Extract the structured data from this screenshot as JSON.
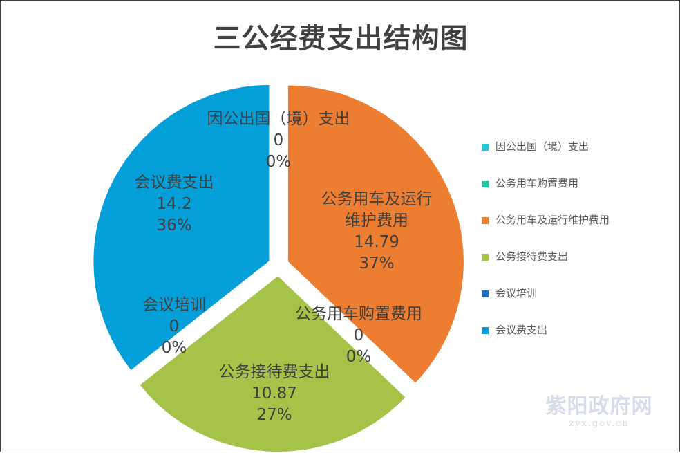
{
  "chart_data": {
    "type": "pie",
    "title": "三公经费支出结构图",
    "slices": [
      {
        "name": "因公出国（境）支出",
        "value": 0,
        "value_label": "0",
        "percent": "0%",
        "color": "#1fc9d6"
      },
      {
        "name": "公务用车购置费用",
        "value": 0,
        "value_label": "0",
        "percent": "0%",
        "color": "#1fc7a0"
      },
      {
        "name": "公务用车及运行维护费用",
        "value": 14.79,
        "value_label": "14.79",
        "percent": "37%",
        "color": "#ed7d31"
      },
      {
        "name": "公务接待费支出",
        "value": 10.87,
        "value_label": "10.87",
        "percent": "27%",
        "color": "#a5c249"
      },
      {
        "name": "会议培训",
        "value": 0,
        "value_label": "0",
        "percent": "0%",
        "color": "#1f6fc4"
      },
      {
        "name": "会议费支出",
        "value": 14.2,
        "value_label": "14.2",
        "percent": "36%",
        "color": "#049fd9"
      }
    ],
    "legend_position": "right"
  },
  "watermark": {
    "name": "紫阳政府网",
    "url": "zyx.gov.cn"
  }
}
